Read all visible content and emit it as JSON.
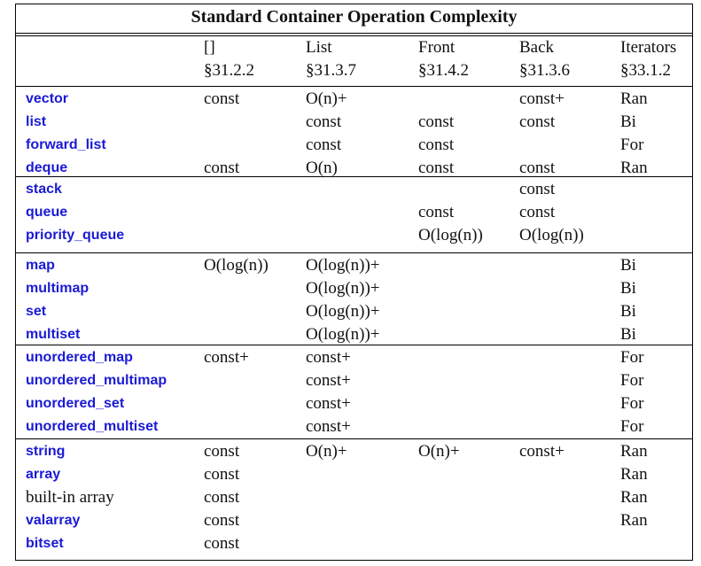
{
  "table": {
    "title": "Standard Container Operation Complexity",
    "header": [
      {
        "top": "[]",
        "bottom": "§31.2.2"
      },
      {
        "top": "List",
        "bottom": "§31.3.7"
      },
      {
        "top": "Front",
        "bottom": "§31.4.2"
      },
      {
        "top": "Back",
        "bottom": "§31.3.6"
      },
      {
        "top": "Iterators",
        "bottom": "§33.1.2"
      }
    ],
    "groups": [
      [
        {
          "name": "vector",
          "link": true,
          "cells": [
            "const",
            "O(n)+",
            "",
            "const+",
            "Ran"
          ]
        },
        {
          "name": "list",
          "link": true,
          "cells": [
            "",
            "const",
            "const",
            "const",
            "Bi"
          ]
        },
        {
          "name": "forward_list",
          "link": true,
          "cells": [
            "",
            "const",
            "const",
            "",
            "For"
          ]
        },
        {
          "name": "deque",
          "link": true,
          "cells": [
            "const",
            "O(n)",
            "const",
            "const",
            "Ran"
          ]
        }
      ],
      [
        {
          "name": "stack",
          "link": true,
          "cells": [
            "",
            "",
            "",
            "const",
            ""
          ]
        },
        {
          "name": "queue",
          "link": true,
          "cells": [
            "",
            "",
            "const",
            "const",
            ""
          ]
        },
        {
          "name": "priority_queue",
          "link": true,
          "cells": [
            "",
            "",
            "O(log(n))",
            "O(log(n))",
            ""
          ]
        }
      ],
      [
        {
          "name": "map",
          "link": true,
          "cells": [
            "O(log(n))",
            "O(log(n))+",
            "",
            "",
            "Bi"
          ]
        },
        {
          "name": "multimap",
          "link": true,
          "cells": [
            "",
            "O(log(n))+",
            "",
            "",
            "Bi"
          ]
        },
        {
          "name": "set",
          "link": true,
          "cells": [
            "",
            "O(log(n))+",
            "",
            "",
            "Bi"
          ]
        },
        {
          "name": "multiset",
          "link": true,
          "cells": [
            "",
            "O(log(n))+",
            "",
            "",
            "Bi"
          ]
        }
      ],
      [
        {
          "name": "unordered_map",
          "link": true,
          "cells": [
            "const+",
            "const+",
            "",
            "",
            "For"
          ]
        },
        {
          "name": "unordered_multimap",
          "link": true,
          "cells": [
            "",
            "const+",
            "",
            "",
            "For"
          ]
        },
        {
          "name": "unordered_set",
          "link": true,
          "cells": [
            "",
            "const+",
            "",
            "",
            "For"
          ]
        },
        {
          "name": "unordered_multiset",
          "link": true,
          "cells": [
            "",
            "const+",
            "",
            "",
            "For"
          ]
        }
      ],
      [
        {
          "name": "string",
          "link": true,
          "cells": [
            "const",
            "O(n)+",
            "O(n)+",
            "const+",
            "Ran"
          ]
        },
        {
          "name": "array",
          "link": true,
          "cells": [
            "const",
            "",
            "",
            "",
            "Ran"
          ]
        },
        {
          "name": "built-in array",
          "link": false,
          "cells": [
            "const",
            "",
            "",
            "",
            "Ran"
          ]
        },
        {
          "name": "valarray",
          "link": true,
          "cells": [
            "const",
            "",
            "",
            "",
            "Ran"
          ]
        },
        {
          "name": "bitset",
          "link": true,
          "cells": [
            "const",
            "",
            "",
            "",
            ""
          ]
        }
      ]
    ]
  }
}
